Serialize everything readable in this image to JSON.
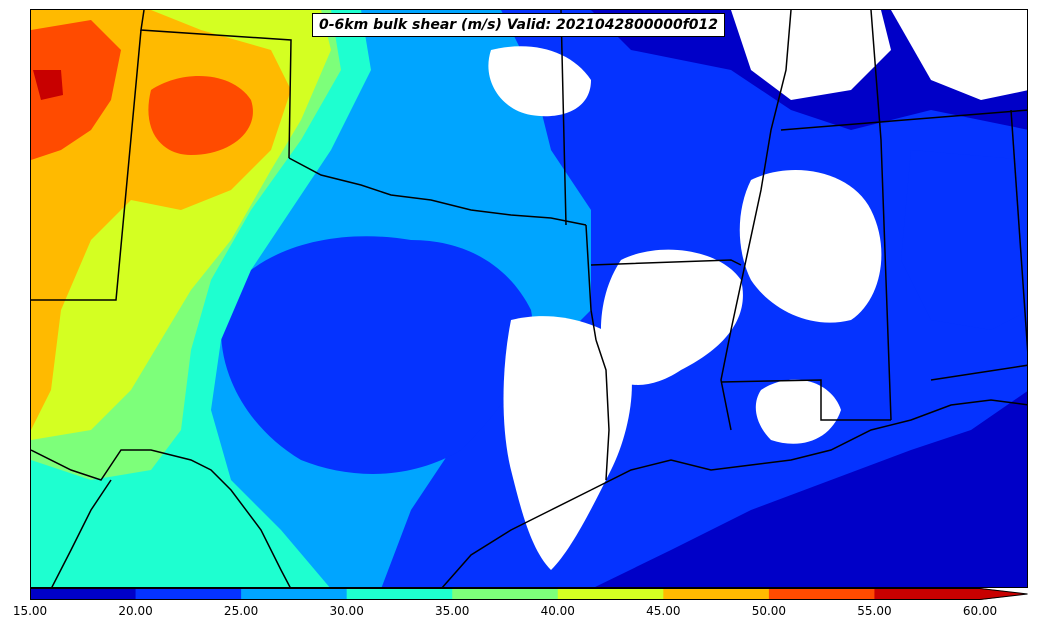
{
  "title": "0-6km bulk shear (m/s) Valid: 2021042800000f012",
  "colorbar": {
    "ticks": [
      "15.00",
      "20.00",
      "25.00",
      "30.00",
      "35.00",
      "40.00",
      "45.00",
      "50.00",
      "55.00",
      "60.00"
    ],
    "bins": [
      {
        "range": [
          15,
          20
        ],
        "color": "#0000c8"
      },
      {
        "range": [
          20,
          25
        ],
        "color": "#0533ff"
      },
      {
        "range": [
          25,
          30
        ],
        "color": "#00a5ff"
      },
      {
        "range": [
          30,
          35
        ],
        "color": "#1effd0"
      },
      {
        "range": [
          35,
          40
        ],
        "color": "#7dff7a"
      },
      {
        "range": [
          40,
          45
        ],
        "color": "#d4ff22"
      },
      {
        "range": [
          45,
          50
        ],
        "color": "#ffba00"
      },
      {
        "range": [
          50,
          55
        ],
        "color": "#ff4b00"
      },
      {
        "range": [
          55,
          60
        ],
        "color": "#c80000"
      }
    ],
    "extend": "max"
  },
  "map": {
    "region": "Southern Plains / Gulf Coast",
    "missing_color": "#ffffff",
    "border_color": "#000000"
  }
}
